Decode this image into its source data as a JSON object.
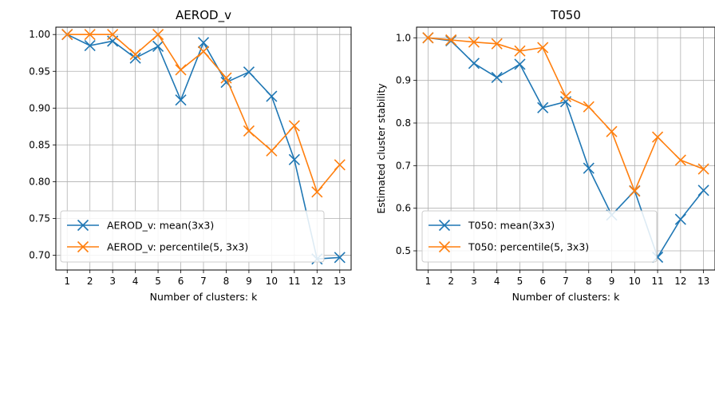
{
  "chart_data": [
    {
      "type": "line",
      "title": "AEROD_v",
      "xlabel": "Number of clusters: k",
      "ylabel": "",
      "x": [
        1,
        2,
        3,
        4,
        5,
        6,
        7,
        8,
        9,
        10,
        11,
        12,
        13
      ],
      "xticks": [
        "1",
        "2",
        "3",
        "4",
        "5",
        "6",
        "7",
        "8",
        "9",
        "10",
        "11",
        "12",
        "13"
      ],
      "xlim": [
        0.5,
        13.5
      ],
      "ylim": [
        0.68,
        1.01
      ],
      "yticks": [
        0.7,
        0.75,
        0.8,
        0.85,
        0.9,
        0.95,
        1.0
      ],
      "ytick_labels": [
        "0.70",
        "0.75",
        "0.80",
        "0.85",
        "0.90",
        "0.95",
        "1.00"
      ],
      "grid": true,
      "legend_position": "lower-left",
      "series": [
        {
          "name": "AEROD_v: mean(3x3)",
          "color": "#1f77b4",
          "marker": "x",
          "values": [
            1.0,
            0.985,
            0.991,
            0.968,
            0.984,
            0.911,
            0.989,
            0.935,
            0.949,
            0.916,
            0.83,
            0.695,
            0.697
          ]
        },
        {
          "name": "AEROD_v: percentile(5, 3x3)",
          "color": "#ff7f0e",
          "marker": "x",
          "values": [
            1.0,
            1.0,
            1.0,
            0.973,
            1.0,
            0.952,
            0.977,
            0.941,
            0.869,
            0.842,
            0.876,
            0.786,
            0.823
          ]
        }
      ]
    },
    {
      "type": "line",
      "title": "T050",
      "xlabel": "Number of clusters: k",
      "ylabel": "Estimated cluster stability",
      "x": [
        1,
        2,
        3,
        4,
        5,
        6,
        7,
        8,
        9,
        10,
        11,
        12,
        13
      ],
      "xticks": [
        "1",
        "2",
        "3",
        "4",
        "5",
        "6",
        "7",
        "8",
        "9",
        "10",
        "11",
        "12",
        "13"
      ],
      "xlim": [
        0.5,
        13.5
      ],
      "ylim": [
        0.455,
        1.025
      ],
      "yticks": [
        0.5,
        0.6,
        0.7,
        0.8,
        0.9,
        1.0
      ],
      "ytick_labels": [
        "0.5",
        "0.6",
        "0.7",
        "0.8",
        "0.9",
        "1.0"
      ],
      "grid": true,
      "legend_position": "lower-left",
      "series": [
        {
          "name": "T050: mean(3x3)",
          "color": "#1f77b4",
          "marker": "x",
          "values": [
            1.0,
            0.993,
            0.94,
            0.907,
            0.938,
            0.836,
            0.85,
            0.694,
            0.584,
            0.641,
            0.485,
            0.574,
            0.642
          ]
        },
        {
          "name": "T050: percentile(5, 3x3)",
          "color": "#ff7f0e",
          "marker": "x",
          "values": [
            1.0,
            0.995,
            0.99,
            0.986,
            0.969,
            0.977,
            0.862,
            0.838,
            0.78,
            0.64,
            0.767,
            0.713,
            0.692
          ]
        }
      ]
    }
  ]
}
